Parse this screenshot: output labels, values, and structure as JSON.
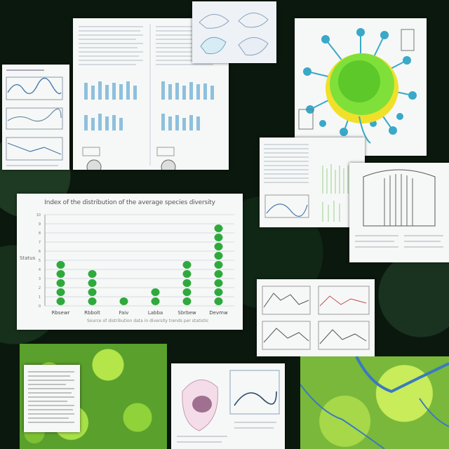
{
  "scene": {
    "description_role": "collage-of-science-posters"
  },
  "center_chart": {
    "title": "Index of the distribution of the average species diversity",
    "ylabel": "Status",
    "categories": [
      "Rbsewr",
      "Rbbolt",
      "Faiv",
      "Labba",
      "Sbrbew",
      "Devmw"
    ],
    "ticks": [
      "0",
      "1",
      "2",
      "3",
      "4",
      "5",
      "6",
      "7",
      "8",
      "9"
    ],
    "footnote": "Source of distribution data in diversity trends per statistic"
  },
  "chart_data": {
    "type": "bar",
    "title": "Index of the distribution of the average species diversity",
    "xlabel": "",
    "ylabel": "Status",
    "categories": [
      "Rbsewr",
      "Rbbolt",
      "Faiv",
      "Labba",
      "Sbrbew",
      "Devmw"
    ],
    "values": [
      5,
      4,
      1,
      2,
      5,
      9
    ],
    "ylim": [
      0,
      10
    ],
    "grid": true,
    "colors": {
      "bar": "#2eaa3c"
    }
  },
  "colors": {
    "background": "#0b180e",
    "paper": "#f6f8f7",
    "accent_green": "#2eaa3c",
    "virus_body": "#7fe03a",
    "virus_spike": "#3aa8c8"
  }
}
